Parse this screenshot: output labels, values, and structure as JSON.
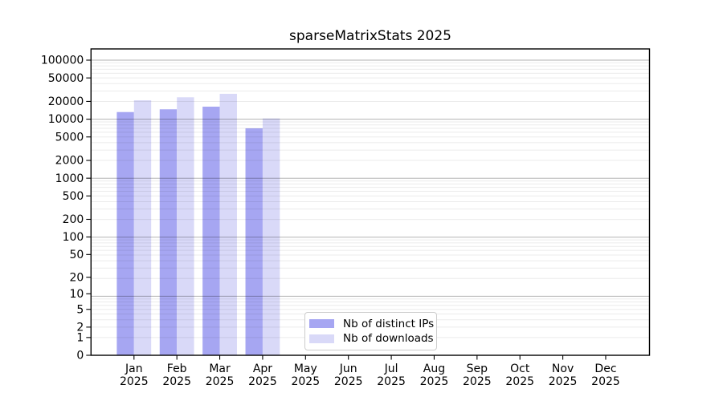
{
  "chart_data": {
    "type": "bar",
    "title": "sparseMatrixStats 2025",
    "categories": [
      {
        "month": "Jan",
        "year": "2025"
      },
      {
        "month": "Feb",
        "year": "2025"
      },
      {
        "month": "Mar",
        "year": "2025"
      },
      {
        "month": "Apr",
        "year": "2025"
      },
      {
        "month": "May",
        "year": "2025"
      },
      {
        "month": "Jun",
        "year": "2025"
      },
      {
        "month": "Jul",
        "year": "2025"
      },
      {
        "month": "Aug",
        "year": "2025"
      },
      {
        "month": "Sep",
        "year": "2025"
      },
      {
        "month": "Oct",
        "year": "2025"
      },
      {
        "month": "Nov",
        "year": "2025"
      },
      {
        "month": "Dec",
        "year": "2025"
      }
    ],
    "series": [
      {
        "name": "Nb of distinct IPs",
        "key": "distinct-ips",
        "color": "#a6a6f2",
        "values": [
          13200,
          14700,
          16300,
          7000,
          0,
          0,
          0,
          0,
          0,
          0,
          0,
          0
        ]
      },
      {
        "name": "Nb of downloads",
        "key": "downloads",
        "color": "#d9d9f8",
        "values": [
          20900,
          23500,
          26900,
          10300,
          0,
          0,
          0,
          0,
          0,
          0,
          0,
          0
        ]
      }
    ],
    "yscale": "log1p",
    "ylim": [
      0,
      163000
    ],
    "ytick_labels": [
      "100000",
      "50000",
      "20000",
      "10000",
      "5000",
      "2000",
      "1000",
      "500",
      "200",
      "100",
      "50",
      "20",
      "10",
      "5",
      "2",
      "1",
      "0"
    ],
    "xlabel": "",
    "ylabel": "",
    "grid": "horizontal major and log-minor gridlines, drawn over bars",
    "legend_position": "lower center inside plot"
  }
}
